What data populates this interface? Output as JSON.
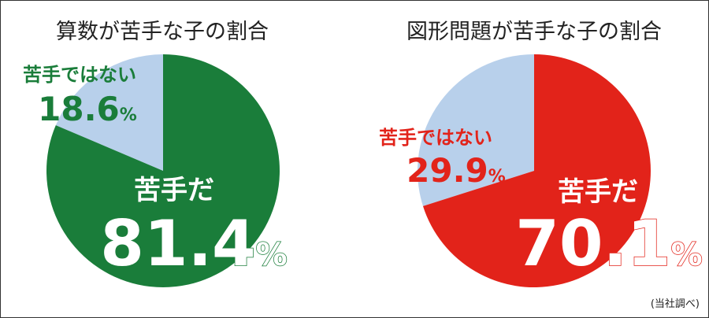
{
  "source_note": "(当社調べ)",
  "colors": {
    "minor": "#b8d0eb",
    "white": "#ffffff"
  },
  "chart_data": [
    {
      "type": "pie",
      "title": "算数が苦手な子の割合",
      "accent": "#1a7d3a",
      "slices": [
        {
          "label": "苦手だ",
          "value": 81.4,
          "display": "81.4",
          "unit": "%"
        },
        {
          "label": "苦手ではない",
          "value": 18.6,
          "display": "18.6",
          "unit": "%"
        }
      ]
    },
    {
      "type": "pie",
      "title": "図形問題が苦手な子の割合",
      "accent": "#e2231a",
      "slices": [
        {
          "label": "苦手だ",
          "value": 70.1,
          "display": "70.1",
          "unit": "%"
        },
        {
          "label": "苦手ではない",
          "value": 29.9,
          "display": "29.9",
          "unit": "%"
        }
      ]
    }
  ]
}
